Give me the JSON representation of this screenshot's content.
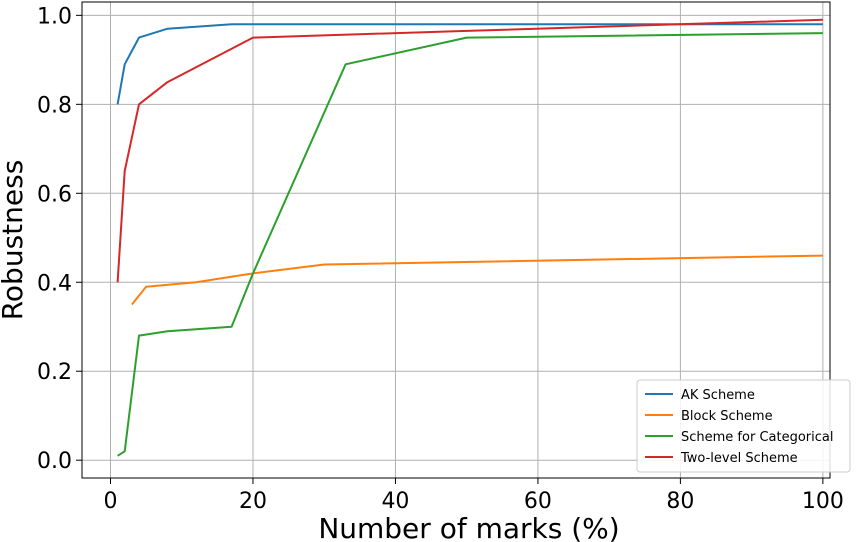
{
  "chart_data": {
    "type": "line",
    "xlabel": "Number of marks (%)",
    "ylabel": "Robustness",
    "xlim": [
      -4,
      101
    ],
    "ylim": [
      -0.04,
      1.03
    ],
    "xticks": [
      0,
      20,
      40,
      60,
      80,
      100
    ],
    "yticks": [
      0.0,
      0.2,
      0.4,
      0.6,
      0.8,
      1.0
    ],
    "xtick_labels": [
      "0",
      "20",
      "40",
      "60",
      "80",
      "100"
    ],
    "ytick_labels": [
      "0.0",
      "0.2",
      "0.4",
      "0.6",
      "0.8",
      "1.0"
    ],
    "grid": true,
    "legend_position": "lower-right",
    "series": [
      {
        "name": "AK Scheme",
        "color": "#1f77b4",
        "x": [
          1,
          2,
          4,
          8,
          17,
          20,
          50,
          100
        ],
        "y": [
          0.8,
          0.89,
          0.95,
          0.97,
          0.98,
          0.98,
          0.98,
          0.98
        ]
      },
      {
        "name": "Block Scheme",
        "color": "#ff7f0e",
        "x": [
          3,
          5,
          12,
          20,
          30,
          100
        ],
        "y": [
          0.35,
          0.39,
          0.4,
          0.42,
          0.44,
          0.46
        ]
      },
      {
        "name": "Scheme for Categorical",
        "color": "#2ca02c",
        "x": [
          1,
          2,
          4,
          8,
          17,
          20,
          33,
          50,
          100
        ],
        "y": [
          0.01,
          0.02,
          0.28,
          0.29,
          0.3,
          0.42,
          0.89,
          0.95,
          0.96
        ]
      },
      {
        "name": "Two-level Scheme",
        "color": "#d62728",
        "x": [
          1,
          2,
          4,
          8,
          20,
          50,
          100
        ],
        "y": [
          0.4,
          0.65,
          0.8,
          0.85,
          0.95,
          0.965,
          0.99
        ]
      }
    ]
  }
}
